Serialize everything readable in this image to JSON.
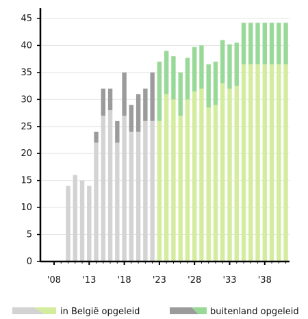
{
  "chart_data": {
    "type": "bar",
    "title": "",
    "xlabel": "",
    "ylabel": "",
    "ylim": [
      0,
      45
    ],
    "yticks": [
      0,
      5,
      10,
      15,
      20,
      25,
      30,
      35,
      40,
      45
    ],
    "xtick_labels": [
      {
        "year": 2008,
        "label": "'08"
      },
      {
        "year": 2013,
        "label": "'13"
      },
      {
        "year": 2018,
        "label": "'18"
      },
      {
        "year": 2023,
        "label": "'23"
      },
      {
        "year": 2028,
        "label": "'28"
      },
      {
        "year": 2033,
        "label": "'33"
      },
      {
        "year": 2038,
        "label": "'38"
      }
    ],
    "grid": true,
    "stacked": true,
    "split_year": 2022.5,
    "colors": {
      "belgie_actual": "#d3d3d3",
      "buitenland_actual": "#9b9b9b",
      "belgie_projection": "#d4ec9e",
      "buitenland_projection": "#98d998",
      "axis": "#000000",
      "grid": "#e3e3e3"
    },
    "categories": [
      2010,
      2011,
      2012,
      2013,
      2014,
      2015,
      2016,
      2017,
      2018,
      2019,
      2020,
      2021,
      2022,
      2023,
      2024,
      2025,
      2026,
      2027,
      2028,
      2029,
      2030,
      2031,
      2032,
      2033,
      2034,
      2035,
      2036,
      2037,
      2038,
      2039,
      2040,
      2041
    ],
    "series": [
      {
        "name": "in België opgeleid",
        "values": [
          14,
          16,
          15,
          14,
          22,
          27,
          28,
          22,
          27,
          24,
          24,
          26,
          26,
          26,
          31,
          30,
          27,
          30,
          31.5,
          32,
          28.5,
          29,
          33,
          32,
          32.5,
          36.5,
          36.5,
          36.5,
          36.5,
          36.5,
          36.5,
          36.5
        ]
      },
      {
        "name": "buitenland opgeleid",
        "values": [
          0,
          0,
          0,
          0,
          2,
          5,
          4,
          4,
          8,
          5,
          7,
          6,
          9,
          11,
          8,
          8,
          8,
          7.7,
          8.2,
          8,
          8,
          8,
          8,
          8.2,
          8,
          7.7,
          7.7,
          7.7,
          7.7,
          7.7,
          7.7,
          7.7
        ]
      }
    ],
    "legend": {
      "position": "bottom",
      "items": [
        {
          "label": "in België opgeleid"
        },
        {
          "label": "buitenland opgeleid"
        }
      ]
    }
  }
}
